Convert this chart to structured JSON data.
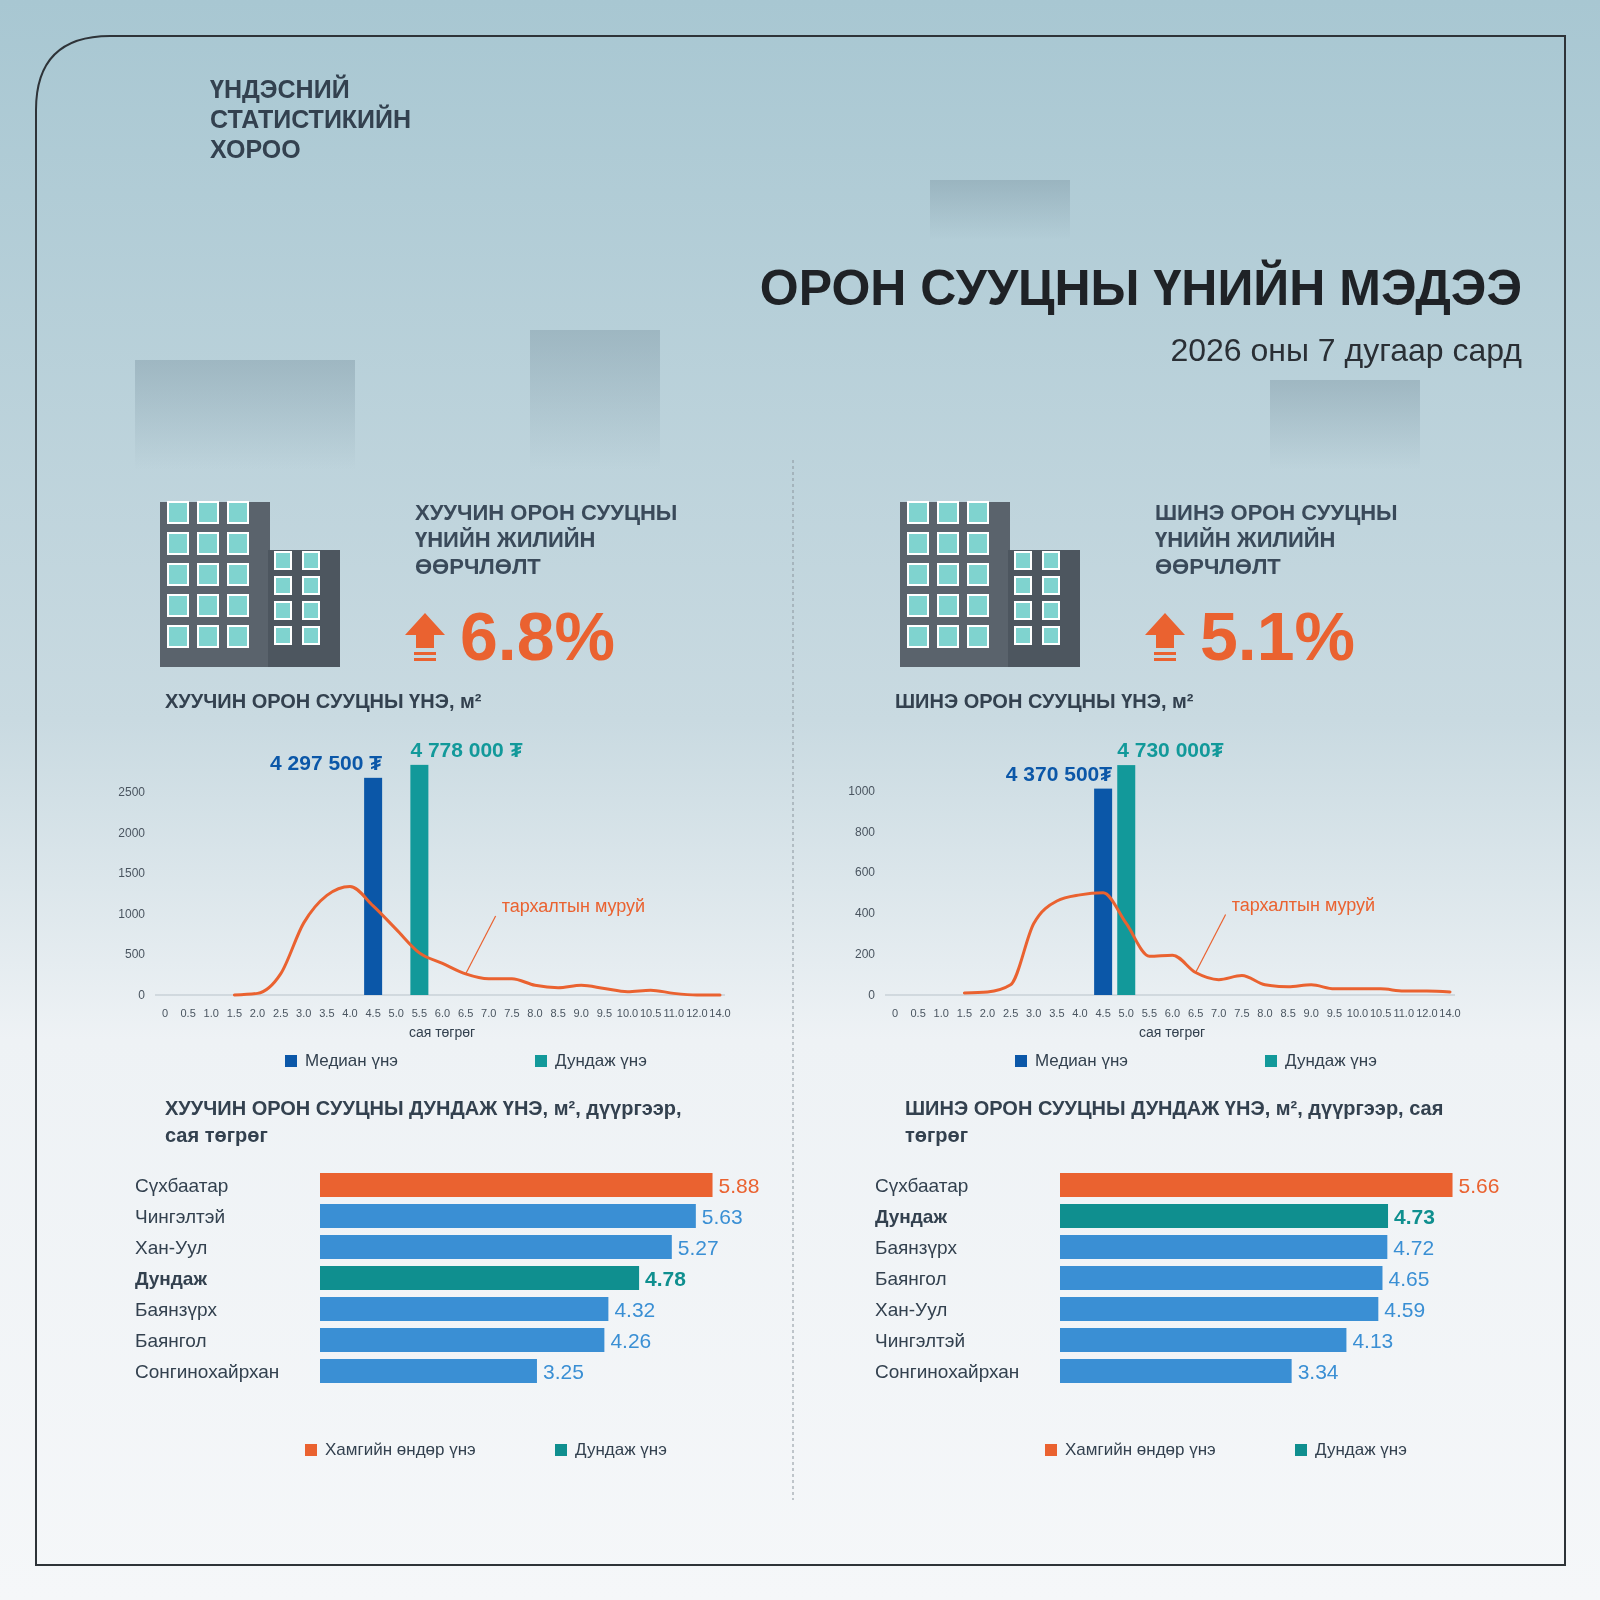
{
  "chart_data": [
    {
      "type": "other",
      "title": "ОРОН СУУЦНЫ ҮНИЙН МЭДЭЭ",
      "subtitle": "2026 оны 7 дугаар сард",
      "annotations": [
        "ҮНДЭСНИЙ СТАТИСТИКИЙН ХОРОО"
      ]
    },
    {
      "type": "other",
      "title": "ХУУЧИН ОРОН СУУЦНЫ ҮНИЙН ЖИЛИЙН ӨӨРЧЛӨЛТ",
      "annotations": [
        "6.8%"
      ]
    },
    {
      "type": "other",
      "title": "ШИНЭ ОРОН СУУЦНЫ ҮНИЙН ЖИЛИЙН ӨӨРЧЛӨЛТ",
      "annotations": [
        "5.1%"
      ]
    },
    {
      "type": "bar",
      "title": "ХУУЧИН ОРОН СУУЦНЫ ҮНЭ, м²",
      "xlabel": "сая төгрөг",
      "categories": [
        "0",
        "0.5",
        "1.0",
        "1.5",
        "2.0",
        "2.5",
        "3.0",
        "3.5",
        "4.0",
        "4.5",
        "5.0",
        "5.5",
        "6.0",
        "6.5",
        "7.0",
        "7.5",
        "8.0",
        "8.5",
        "9.0",
        "9.5",
        "10.0",
        "10.5",
        "11.0",
        "12.0",
        "14.0"
      ],
      "series": [
        {
          "type": "bar",
          "name": "Медиан үнэ",
          "color": "#0b57a8",
          "values": [
            null,
            null,
            null,
            null,
            null,
            null,
            null,
            null,
            null,
            2680,
            null,
            null,
            null,
            null,
            null,
            null,
            null,
            null,
            null,
            null,
            null,
            null,
            null,
            null,
            null
          ]
        },
        {
          "type": "bar",
          "name": "Дундаж үнэ",
          "color": "#12999a",
          "values": [
            null,
            null,
            null,
            null,
            null,
            null,
            null,
            null,
            null,
            null,
            null,
            2840,
            null,
            null,
            null,
            null,
            null,
            null,
            null,
            null,
            null,
            null,
            null,
            null,
            null
          ]
        },
        {
          "type": "line",
          "color": "#ea6230",
          "values": [
            null,
            null,
            null,
            0,
            20,
            260,
            890,
            1230,
            1340,
            1100,
            810,
            520,
            390,
            260,
            200,
            200,
            120,
            90,
            120,
            80,
            40,
            60,
            20,
            0,
            0
          ]
        }
      ],
      "ylim": [
        0,
        2900
      ],
      "yticks": [
        0,
        500,
        1000,
        1500,
        2000,
        2500
      ],
      "grid": false,
      "legend": "bottom",
      "annotations": [
        {
          "text": "тархалтын муруй",
          "x": "6.5",
          "y": 260
        },
        {
          "text": "4 297 500 ₮",
          "x": "4.5",
          "y": 2680
        },
        {
          "text": "4 778 000 ₮",
          "x": "5.5",
          "y": 2840
        }
      ]
    },
    {
      "type": "bar",
      "title": "ШИНЭ ОРОН СУУЦНЫ ҮНЭ, м²",
      "xlabel": "сая төгрөг",
      "categories": [
        "0",
        "0.5",
        "1.0",
        "1.5",
        "2.0",
        "2.5",
        "3.0",
        "3.5",
        "4.0",
        "4.5",
        "5.0",
        "5.5",
        "6.0",
        "6.5",
        "7.0",
        "7.5",
        "8.0",
        "8.5",
        "9.0",
        "9.5",
        "10.0",
        "10.5",
        "11.0",
        "12.0",
        "14.0"
      ],
      "series": [
        {
          "type": "bar",
          "name": "Медиан үнэ",
          "color": "#0b57a8",
          "values": [
            null,
            null,
            null,
            null,
            null,
            null,
            null,
            null,
            null,
            1010,
            null,
            null,
            null,
            null,
            null,
            null,
            null,
            null,
            null,
            null,
            null,
            null,
            null,
            null,
            null
          ]
        },
        {
          "type": "bar",
          "name": "Дундаж үнэ",
          "color": "#12999a",
          "values": [
            null,
            null,
            null,
            null,
            null,
            null,
            null,
            null,
            null,
            null,
            1125,
            null,
            null,
            null,
            null,
            null,
            null,
            null,
            null,
            null,
            null,
            null,
            null,
            null,
            null
          ]
        },
        {
          "type": "line",
          "color": "#ea6230",
          "values": [
            null,
            null,
            null,
            10,
            15,
            50,
            350,
            460,
            490,
            500,
            350,
            190,
            195,
            110,
            75,
            95,
            50,
            40,
            50,
            30,
            30,
            30,
            20,
            20,
            15
          ]
        }
      ],
      "ylim": [
        0,
        1150
      ],
      "yticks": [
        0,
        200,
        400,
        600,
        800,
        1000
      ],
      "grid": false,
      "legend": "bottom",
      "annotations": [
        {
          "text": "тархалтын муруй",
          "x": "6.5",
          "y": 110
        },
        {
          "text": "4 370 500₮",
          "x": "4.5",
          "y": 1010
        },
        {
          "text": "4 730 000₮",
          "x": "5.0",
          "y": 1125
        }
      ]
    },
    {
      "type": "bar",
      "orientation": "horizontal",
      "title": "ХУУЧИН ОРОН СУУЦНЫ ДУНДАЖ ҮНЭ, м², дүүргээр, сая төгрөг",
      "categories": [
        "Сүхбаатар",
        "Чингэлтэй",
        "Хан-Уул",
        "Дундаж",
        "Баянзүрх",
        "Баянгол",
        "Сонгинохайрхан"
      ],
      "series": [
        {
          "name": "Хамгийн өндөр үнэ",
          "color": "#ea6230",
          "values": [
            5.88,
            null,
            null,
            null,
            null,
            null,
            null
          ]
        },
        {
          "name": "Дундаж үнэ",
          "color": "#0f8f8f",
          "values": [
            null,
            null,
            null,
            4.78,
            null,
            null,
            null
          ]
        },
        {
          "color": "#3a8fd4",
          "values": [
            null,
            5.63,
            5.27,
            null,
            4.32,
            4.26,
            3.25
          ]
        }
      ],
      "data_labels": true,
      "legend": "bottom"
    },
    {
      "type": "bar",
      "orientation": "horizontal",
      "title": "ШИНЭ ОРОН СУУЦНЫ ДУНДАЖ ҮНЭ, м², дүүргээр, сая төгрөг",
      "categories": [
        "Сүхбаатар",
        "Дундаж",
        "Баянзүрх",
        "Баянгол",
        "Хан-Уул",
        "Чингэлтэй",
        "Сонгинохайрхан"
      ],
      "series": [
        {
          "name": "Хамгийн өндөр үнэ",
          "color": "#ea6230",
          "values": [
            5.66,
            null,
            null,
            null,
            null,
            null,
            null
          ]
        },
        {
          "name": "Дундаж үнэ",
          "color": "#0f8f8f",
          "values": [
            null,
            4.73,
            null,
            null,
            null,
            null,
            null
          ]
        },
        {
          "color": "#3a8fd4",
          "values": [
            null,
            null,
            4.72,
            4.65,
            4.59,
            4.13,
            3.34
          ]
        }
      ],
      "data_labels": true,
      "legend": "bottom"
    }
  ]
}
